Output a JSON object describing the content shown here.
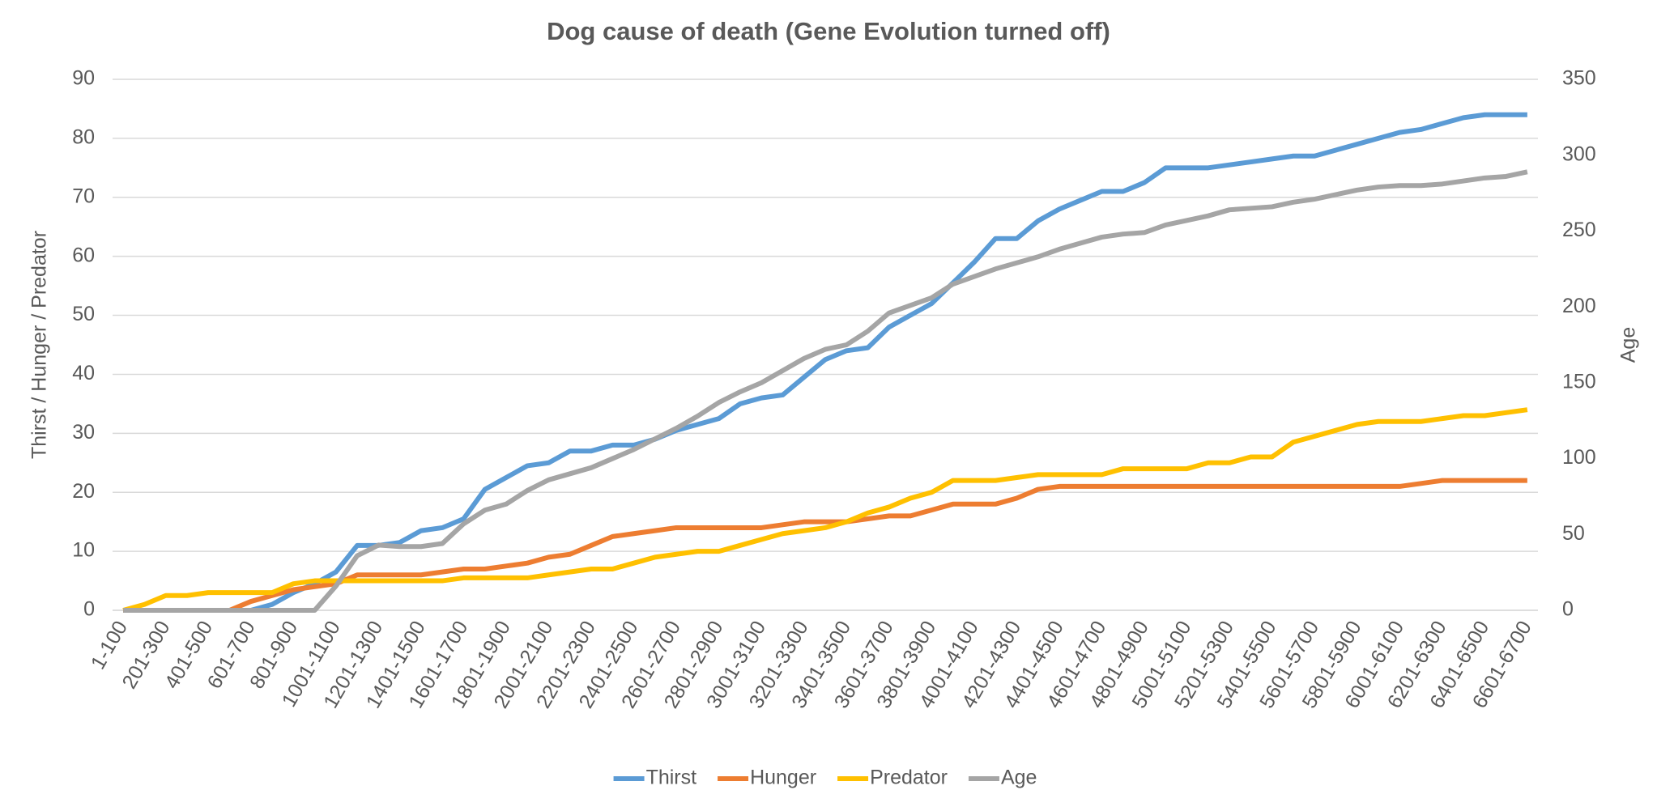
{
  "chart_data": {
    "type": "line",
    "title": "Dog cause of death (Gene Evolution turned off)",
    "y_label": "Thirst / Hunger / Predator",
    "y2_label": "Age",
    "categories": [
      "1-100",
      null,
      "201-300",
      null,
      "401-500",
      null,
      "601-700",
      null,
      "801-900",
      null,
      "1001-1100",
      null,
      "1201-1300",
      null,
      "1401-1500",
      null,
      "1601-1700",
      null,
      "1801-1900",
      null,
      "2001-2100",
      null,
      "2201-2300",
      null,
      "2401-2500",
      null,
      "2601-2700",
      null,
      "2801-2900",
      null,
      "3001-3100",
      null,
      "3201-3300",
      null,
      "3401-3500",
      null,
      "3601-3700",
      null,
      "3801-3900",
      null,
      "4001-4100",
      null,
      "4201-4300",
      null,
      "4401-4500",
      null,
      "4601-4700",
      null,
      "4801-4900",
      null,
      "5001-5100",
      null,
      "5201-5300",
      null,
      "5401-5500",
      null,
      "5601-5700",
      null,
      "5801-5900",
      null,
      "6001-6100",
      null,
      "6201-6300",
      null,
      "6401-6500",
      null,
      "6601-6700"
    ],
    "series": [
      {
        "name": "Thirst",
        "color": "#5b9bd5",
        "values": [
          0,
          0,
          0,
          0,
          0,
          0,
          0,
          1,
          3,
          4.5,
          6.5,
          11,
          11,
          11.5,
          13.5,
          14,
          15.5,
          20.5,
          22.5,
          24.5,
          25,
          27,
          27,
          28,
          28,
          29,
          30.5,
          31.5,
          32.5,
          35,
          36,
          36.5,
          39.5,
          42.5,
          44,
          44.5,
          48,
          50,
          52,
          55.5,
          59,
          63,
          63,
          66,
          68,
          69.5,
          71,
          71,
          72.5,
          75,
          75,
          75,
          75.5,
          76,
          76.5,
          77,
          77,
          78,
          79,
          80,
          81,
          81.5,
          82.5,
          83.5,
          84,
          84,
          84
        ]
      },
      {
        "name": "Hunger",
        "color": "#ed7d31",
        "values": [
          0,
          0,
          0,
          0,
          0,
          0,
          1.5,
          2.5,
          3.5,
          4,
          4.5,
          6,
          6,
          6,
          6,
          6.5,
          7,
          7,
          7.5,
          8,
          9,
          9.5,
          11,
          12.5,
          13,
          13.5,
          14,
          14,
          14,
          14,
          14,
          14.5,
          15,
          15,
          15,
          15.5,
          16,
          16,
          17,
          18,
          18,
          18,
          19,
          20.5,
          21,
          21,
          21,
          21,
          21,
          21,
          21,
          21,
          21,
          21,
          21,
          21,
          21,
          21,
          21,
          21,
          21,
          21.5,
          22,
          22,
          22,
          22,
          22
        ]
      },
      {
        "name": "Predator",
        "color": "#ffc000",
        "values": [
          0,
          1,
          2.5,
          2.5,
          3,
          3,
          3,
          3,
          4.5,
          5,
          5,
          5,
          5,
          5,
          5,
          5,
          5.5,
          5.5,
          5.5,
          5.5,
          6,
          6.5,
          7,
          7,
          8,
          9,
          9.5,
          10,
          10,
          11,
          12,
          13,
          13.5,
          14,
          15,
          16.5,
          17.5,
          19,
          20,
          22,
          22,
          22,
          22.5,
          23,
          23,
          23,
          23,
          24,
          24,
          24,
          24,
          25,
          25,
          26,
          26,
          28.5,
          29.5,
          30.5,
          31.5,
          32,
          32,
          32,
          32.5,
          33,
          33,
          33.5,
          34
        ]
      },
      {
        "name": "Age",
        "color": "#a5a5a5",
        "axis": "y2",
        "values": [
          0,
          0,
          0,
          0,
          0,
          0,
          0,
          0,
          0,
          0,
          16,
          36,
          43,
          42,
          42,
          44,
          57,
          66,
          70,
          79,
          86,
          90,
          94,
          100,
          106,
          113,
          120,
          128,
          137,
          144,
          150,
          158,
          166,
          172,
          175,
          184,
          196,
          201,
          206,
          215,
          220,
          225,
          229,
          233,
          238,
          242,
          246,
          248,
          249,
          254,
          257,
          260,
          264,
          265,
          266,
          269,
          271,
          274,
          277,
          279,
          280,
          280,
          281,
          283,
          285,
          286,
          289
        ]
      }
    ],
    "ylim": [
      0,
      90
    ],
    "yticks": [
      0,
      10,
      20,
      30,
      40,
      50,
      60,
      70,
      80,
      90
    ],
    "y2lim": [
      0,
      350
    ],
    "y2ticks": [
      0,
      50,
      100,
      150,
      200,
      250,
      300,
      350
    ],
    "grid": true,
    "legend": "bottom"
  }
}
